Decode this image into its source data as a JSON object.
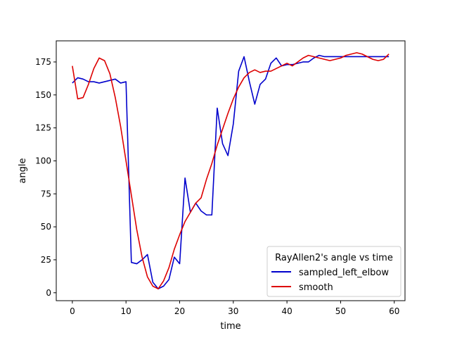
{
  "chart_data": {
    "type": "line",
    "title": "",
    "xlabel": "time",
    "ylabel": "angle",
    "xlim": [
      -3,
      62
    ],
    "ylim": [
      -6,
      191
    ],
    "xticks": [
      0,
      10,
      20,
      30,
      40,
      50,
      60
    ],
    "yticks": [
      0,
      25,
      50,
      75,
      100,
      125,
      150,
      175
    ],
    "grid": false,
    "legend": {
      "title": "RayAllen2's angle vs time",
      "placement": "lower-right"
    },
    "x": [
      0,
      1,
      2,
      3,
      4,
      5,
      6,
      7,
      8,
      9,
      10,
      11,
      12,
      13,
      14,
      15,
      16,
      17,
      18,
      19,
      20,
      21,
      22,
      23,
      24,
      25,
      26,
      27,
      28,
      29,
      30,
      31,
      32,
      33,
      34,
      35,
      36,
      37,
      38,
      39,
      40,
      41,
      42,
      43,
      44,
      45,
      46,
      47,
      48,
      49,
      50,
      51,
      52,
      53,
      54,
      55,
      56,
      57,
      58,
      59
    ],
    "series": [
      {
        "name": "sampled_left_elbow",
        "color": "#0000cc",
        "values": [
          159,
          163,
          162,
          160,
          160,
          159,
          160,
          161,
          162,
          159,
          160,
          23,
          22,
          25,
          29,
          8,
          3,
          5,
          10,
          27,
          22,
          87,
          61,
          68,
          62,
          59,
          59,
          140,
          113,
          104,
          128,
          168,
          179,
          160,
          143,
          158,
          162,
          174,
          178,
          172,
          173,
          173,
          174,
          175,
          175,
          178,
          180,
          179,
          179,
          179,
          179,
          179,
          179,
          179,
          179,
          179,
          179,
          179,
          179,
          179
        ]
      },
      {
        "name": "smooth",
        "color": "#dd0000",
        "values": [
          172,
          147,
          148,
          158,
          170,
          178,
          176,
          166,
          148,
          126,
          100,
          74,
          48,
          27,
          12,
          5,
          3,
          9,
          19,
          33,
          44,
          54,
          61,
          68,
          72,
          86,
          98,
          112,
          124,
          136,
          147,
          156,
          163,
          167,
          169,
          167,
          168,
          168,
          170,
          172,
          174,
          172,
          175,
          178,
          180,
          179,
          178,
          177,
          176,
          177,
          178,
          180,
          181,
          182,
          181,
          179,
          177,
          176,
          177,
          181
        ]
      }
    ]
  }
}
